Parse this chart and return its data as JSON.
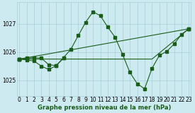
{
  "title": "Graphe pression niveau de la mer (hPa)",
  "hours": [
    0,
    1,
    2,
    3,
    4,
    5,
    6,
    7,
    8,
    9,
    10,
    11,
    12,
    13,
    14,
    15,
    16,
    17,
    18,
    19,
    20,
    21,
    22,
    23
  ],
  "yticks": [
    1025,
    1026,
    1027
  ],
  "ylim": [
    1024.45,
    1027.75
  ],
  "xlim": [
    -0.3,
    23.3
  ],
  "bg_color": "#cdeaf0",
  "grid_color": "#a8d0d8",
  "line_color": "#1a5c1a",
  "main_curve": [
    1025.75,
    1025.78,
    1025.8,
    1025.78,
    1025.55,
    1025.52,
    1025.8,
    1026.1,
    1026.58,
    1027.05,
    1027.42,
    1027.28,
    1026.88,
    1026.52,
    1025.92,
    1025.28,
    1024.88,
    1024.7,
    1025.42,
    1025.88,
    1026.02,
    1026.28,
    1026.62,
    1026.82
  ],
  "dip_curve_x": [
    0,
    1,
    2,
    3,
    4,
    5,
    6
  ],
  "dip_curve_y": [
    1025.75,
    1025.72,
    1025.68,
    1025.5,
    1025.38,
    1025.52,
    1025.78
  ],
  "flat_line_x": [
    0,
    18,
    23
  ],
  "flat_line_y": [
    1025.75,
    1025.75,
    1026.82
  ],
  "diag_line_x": [
    0,
    23
  ],
  "diag_line_y": [
    1025.75,
    1026.82
  ],
  "font_main": 6,
  "font_tick": 5.5
}
